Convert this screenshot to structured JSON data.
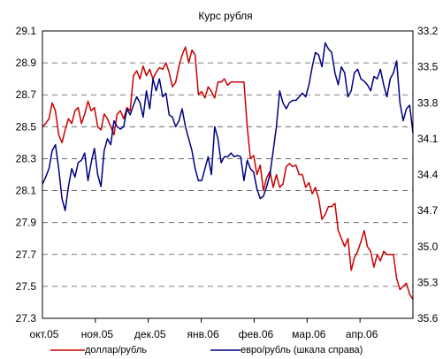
{
  "chart_data": {
    "type": "line",
    "title": "Курс рубля",
    "x_tick_labels": [
      "окт.05",
      "ноя.05",
      "дек.05",
      "янв.06",
      "фев.06",
      "мар.06",
      "апр.06"
    ],
    "y_left": {
      "ticks": [
        "29.1",
        "28.9",
        "28.7",
        "28.5",
        "28.3",
        "28.1",
        "27.9",
        "27.7",
        "27.5",
        "27.3"
      ],
      "min": 27.3,
      "max": 29.1
    },
    "y_right": {
      "ticks": [
        "33.2",
        "33.5",
        "33.8",
        "34.1",
        "34.4",
        "34.7",
        "35.0",
        "35.3",
        "35.6"
      ],
      "min": 33.2,
      "max": 35.6,
      "inverted": true
    },
    "grid": "horizontal dashed",
    "legend_position": "bottom",
    "series": [
      {
        "name": "доллар/рубль",
        "color": "#cc0000",
        "axis": "left",
        "values": [
          28.5,
          28.52,
          28.55,
          28.65,
          28.6,
          28.45,
          28.4,
          28.48,
          28.55,
          28.52,
          28.6,
          28.62,
          28.52,
          28.58,
          28.66,
          28.6,
          28.62,
          28.5,
          28.48,
          28.58,
          28.55,
          28.5,
          28.45,
          28.58,
          28.6,
          28.55,
          28.62,
          28.6,
          28.82,
          28.85,
          28.8,
          28.88,
          28.82,
          28.86,
          28.8,
          28.84,
          28.87,
          28.86,
          28.9,
          28.84,
          28.75,
          28.78,
          28.88,
          28.95,
          29.0,
          28.9,
          28.98,
          28.95,
          28.7,
          28.72,
          28.68,
          28.75,
          28.72,
          28.68,
          28.78,
          28.78,
          28.8,
          28.76,
          28.78,
          28.78,
          28.78,
          28.78,
          28.78,
          28.5,
          28.3,
          28.32,
          28.2,
          28.26,
          28.1,
          28.18,
          28.22,
          28.12,
          28.2,
          28.12,
          28.14,
          28.25,
          28.27,
          28.25,
          28.26,
          28.2,
          28.2,
          28.12,
          28.15,
          28.08,
          28.12,
          28.05,
          27.92,
          27.95,
          28.0,
          28.0,
          28.02,
          27.85,
          27.8,
          27.75,
          27.8,
          27.6,
          27.68,
          27.72,
          27.78,
          27.85,
          27.75,
          27.72,
          27.62,
          27.7,
          27.66,
          27.72,
          27.7,
          27.7,
          27.7,
          27.55,
          27.48,
          27.5,
          27.52,
          27.45,
          27.42
        ]
      },
      {
        "name": "евро/рубль (шкала справа)",
        "color": "#000080",
        "axis": "right",
        "values": [
          34.48,
          34.42,
          34.35,
          34.2,
          34.15,
          34.35,
          34.6,
          34.7,
          34.5,
          34.35,
          34.42,
          34.3,
          34.28,
          34.22,
          34.45,
          34.3,
          34.18,
          34.4,
          34.5,
          34.2,
          34.1,
          34.15,
          33.95,
          34.0,
          34.02,
          34.0,
          33.85,
          33.9,
          33.82,
          33.75,
          33.8,
          33.92,
          33.7,
          33.85,
          33.6,
          33.7,
          33.6,
          33.75,
          33.72,
          33.9,
          33.92,
          34.0,
          33.95,
          33.85,
          34.0,
          34.1,
          34.2,
          34.35,
          34.45,
          34.45,
          34.35,
          34.25,
          34.4,
          34.0,
          34.1,
          34.3,
          34.25,
          34.25,
          34.22,
          34.25,
          34.24,
          34.25,
          34.45,
          34.28,
          34.35,
          34.38,
          34.52,
          34.6,
          34.58,
          34.5,
          34.4,
          34.2,
          34.0,
          33.7,
          33.8,
          33.85,
          33.8,
          33.78,
          33.78,
          33.75,
          33.72,
          33.75,
          33.65,
          33.5,
          33.38,
          33.4,
          33.5,
          33.3,
          33.35,
          33.38,
          33.55,
          33.65,
          33.5,
          33.55,
          33.75,
          33.7,
          33.55,
          33.52,
          33.6,
          33.62,
          33.65,
          33.7,
          33.58,
          33.6,
          33.52,
          33.65,
          33.75,
          33.6,
          33.55,
          33.45,
          33.8,
          33.95,
          33.85,
          33.82,
          34.05
        ]
      }
    ]
  }
}
